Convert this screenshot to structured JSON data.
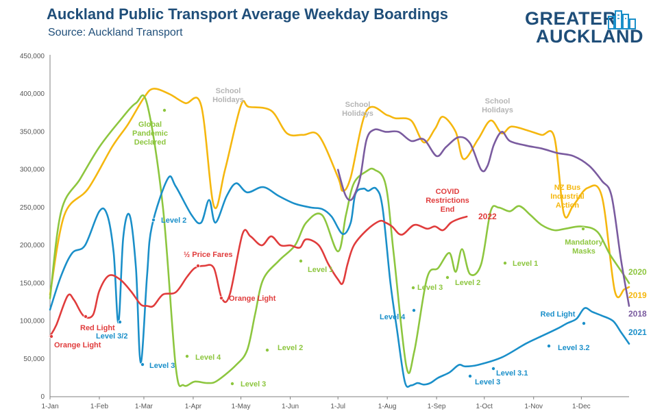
{
  "title": "Auckland Public Transport Average Weekday Boardings",
  "subtitle": "Source: Auckland Transport",
  "logo": {
    "line1": "GREATER",
    "line2": "AUCKLAND",
    "icon": "city-skyline-icon"
  },
  "chart_data": {
    "type": "line",
    "title": "Auckland Public Transport Average Weekday Boardings",
    "xlabel": "",
    "ylabel": "",
    "ylim": [
      0,
      450000
    ],
    "yticks": [
      0,
      50000,
      100000,
      150000,
      200000,
      250000,
      300000,
      350000,
      400000,
      450000
    ],
    "ytick_labels": [
      "0",
      "50,000",
      "100,000",
      "150,000",
      "200,000",
      "250,000",
      "300,000",
      "350,000",
      "400,000",
      "450,000"
    ],
    "xticks": [
      1,
      32,
      60,
      91,
      121,
      152,
      182,
      213,
      244,
      274,
      305,
      335
    ],
    "xtick_labels": [
      "1-Jan",
      "1-Feb",
      "1-Mar",
      "1-Apr",
      "1-May",
      "1-Jun",
      "1-Jul",
      "1-Aug",
      "1-Sep",
      "1-Oct",
      "1-Nov",
      "1-Dec"
    ],
    "xlim": [
      1,
      365
    ],
    "grid": false,
    "legend": "labels at line ends",
    "series": [
      {
        "name": "2019",
        "color": "#f5b70f",
        "x": [
          1,
          10,
          25,
          40,
          50,
          60,
          66,
          76,
          86,
          96,
          104,
          111,
          121,
          126,
          140,
          150,
          160,
          170,
          182,
          185,
          190,
          200,
          213,
          218,
          228,
          236,
          243,
          248,
          256,
          261,
          270,
          278,
          285,
          291,
          301,
          310,
          318,
          324,
          330,
          339,
          348,
          356,
          362,
          365
        ],
        "values": [
          135000,
          240000,
          275000,
          330000,
          360000,
          395000,
          407000,
          400000,
          388000,
          385000,
          252000,
          300000,
          385000,
          383000,
          378000,
          348000,
          346000,
          345000,
          290000,
          272000,
          290000,
          378000,
          372000,
          368000,
          365000,
          336000,
          354000,
          370000,
          350000,
          314000,
          340000,
          365000,
          348000,
          357000,
          352000,
          346000,
          343000,
          242000,
          253000,
          276000,
          264000,
          140000,
          142000,
          145000
        ]
      },
      {
        "name": "2020",
        "color": "#8dc63f",
        "x": [
          1,
          8,
          20,
          32,
          45,
          55,
          62,
          72,
          80,
          85,
          92,
          100,
          106,
          118,
          125,
          130,
          135,
          145,
          155,
          162,
          172,
          182,
          187,
          192,
          200,
          205,
          212,
          217,
          225,
          230,
          238,
          245,
          252,
          256,
          260,
          265,
          272,
          278,
          283,
          290,
          296,
          303,
          310,
          318,
          325,
          335,
          345,
          353,
          362,
          365
        ],
        "values": [
          130000,
          245000,
          288000,
          330000,
          365000,
          388000,
          387000,
          250000,
          40000,
          15000,
          20000,
          18000,
          21000,
          42000,
          62000,
          110000,
          155000,
          180000,
          200000,
          230000,
          240000,
          192000,
          240000,
          282000,
          298000,
          300000,
          280000,
          190000,
          40000,
          60000,
          157000,
          170000,
          190000,
          165000,
          195000,
          162000,
          175000,
          245000,
          250000,
          245000,
          252000,
          240000,
          227000,
          220000,
          222000,
          225000,
          218000,
          188000,
          160000,
          150000
        ]
      },
      {
        "name": "2021",
        "color": "#1a8fc9",
        "x": [
          1,
          8,
          15,
          23,
          32,
          37,
          41,
          44,
          47,
          51,
          55,
          58,
          62,
          65,
          75,
          80,
          90,
          96,
          101,
          105,
          112,
          118,
          125,
          135,
          145,
          155,
          165,
          172,
          178,
          185,
          190,
          193,
          198,
          201,
          206,
          210,
          215,
          219,
          224,
          228,
          232,
          236,
          240,
          245,
          252,
          258,
          262,
          270,
          285,
          300,
          310,
          320,
          326,
          332,
          337,
          342,
          348,
          355,
          360,
          365
        ],
        "values": [
          115000,
          160000,
          190000,
          200000,
          245000,
          240000,
          190000,
          98000,
          210000,
          240000,
          170000,
          45000,
          160000,
          225000,
          288000,
          278000,
          240000,
          230000,
          260000,
          230000,
          265000,
          282000,
          270000,
          277000,
          265000,
          255000,
          250000,
          248000,
          238000,
          215000,
          230000,
          268000,
          275000,
          272000,
          275000,
          250000,
          150000,
          90000,
          20000,
          15000,
          18000,
          16000,
          18000,
          25000,
          32000,
          42000,
          40000,
          42000,
          52000,
          70000,
          80000,
          90000,
          97000,
          103000,
          117000,
          112000,
          107000,
          100000,
          85000,
          70000
        ]
      },
      {
        "name": "2018",
        "color": "#7a5b9f",
        "x": [
          182,
          186,
          189,
          192,
          196,
          200,
          205,
          212,
          220,
          228,
          236,
          244,
          250,
          258,
          265,
          272,
          276,
          280,
          285,
          290,
          300,
          310,
          320,
          330,
          340,
          348,
          354,
          360,
          365
        ],
        "values": [
          300000,
          270000,
          260000,
          265000,
          290000,
          340000,
          353000,
          350000,
          350000,
          338000,
          340000,
          318000,
          330000,
          343000,
          335000,
          300000,
          305000,
          333000,
          350000,
          338000,
          332000,
          328000,
          322000,
          318000,
          305000,
          285000,
          265000,
          180000,
          120000
        ]
      },
      {
        "name": "2022",
        "color": "#e03c3c",
        "x": [
          1,
          5,
          12,
          16,
          22,
          28,
          32,
          38,
          45,
          52,
          58,
          62,
          66,
          72,
          80,
          87,
          92,
          98,
          104,
          109,
          114,
          122,
          127,
          134,
          140,
          146,
          152,
          158,
          162,
          170,
          176,
          182,
          185,
          188,
          192,
          200,
          208,
          212,
          216,
          222,
          230,
          238,
          243,
          248,
          253,
          258,
          263
        ],
        "values": [
          80000,
          95000,
          133000,
          128000,
          107000,
          108000,
          140000,
          160000,
          155000,
          139000,
          122000,
          120000,
          120000,
          135000,
          138000,
          158000,
          170000,
          173000,
          170000,
          130000,
          135000,
          215000,
          212000,
          200000,
          212000,
          200000,
          200000,
          197000,
          208000,
          200000,
          175000,
          155000,
          150000,
          175000,
          200000,
          220000,
          232000,
          230000,
          225000,
          214000,
          227000,
          222000,
          225000,
          220000,
          230000,
          235000,
          238000
        ]
      }
    ],
    "series_labels": [
      {
        "text": "2020",
        "color": "#8dc63f"
      },
      {
        "text": "2019",
        "color": "#f5b70f"
      },
      {
        "text": "2018",
        "color": "#7a5b9f"
      },
      {
        "text": "2021",
        "color": "#1a8fc9"
      },
      {
        "text": "2022",
        "color": "#e03c3c"
      }
    ],
    "annotations": [
      {
        "lines": [
          "School",
          "Holidays"
        ],
        "color": "#b5b5b5",
        "marker": false
      },
      {
        "lines": [
          "School",
          "Holidays"
        ],
        "color": "#b5b5b5",
        "marker": false
      },
      {
        "lines": [
          "School",
          "Holidays"
        ],
        "color": "#b5b5b5",
        "marker": false
      },
      {
        "lines": [
          "Global",
          "Pandemic",
          "Declared"
        ],
        "color": "#8dc63f",
        "marker": true
      },
      {
        "lines": [
          "Level 4"
        ],
        "color": "#8dc63f",
        "marker": true
      },
      {
        "lines": [
          "Level 3"
        ],
        "color": "#8dc63f",
        "marker": true
      },
      {
        "lines": [
          "Level 2"
        ],
        "color": "#8dc63f",
        "marker": true
      },
      {
        "lines": [
          "Level 1"
        ],
        "color": "#8dc63f",
        "marker": true
      },
      {
        "lines": [
          "Level 3"
        ],
        "color": "#8dc63f",
        "marker": true
      },
      {
        "lines": [
          "Level 2"
        ],
        "color": "#8dc63f",
        "marker": true
      },
      {
        "lines": [
          "Level 1"
        ],
        "color": "#8dc63f",
        "marker": true
      },
      {
        "lines": [
          "Mandatory",
          "Masks"
        ],
        "color": "#8dc63f",
        "marker": true
      },
      {
        "lines": [
          "NZ Bus",
          "Industrial",
          "Action"
        ],
        "color": "#f5b70f",
        "marker": false
      },
      {
        "lines": [
          "Level 2"
        ],
        "color": "#1a8fc9",
        "marker": true
      },
      {
        "lines": [
          "Level 3/2"
        ],
        "color": "#1a8fc9",
        "marker": true
      },
      {
        "lines": [
          "Level 3"
        ],
        "color": "#1a8fc9",
        "marker": true
      },
      {
        "lines": [
          "Level 4"
        ],
        "color": "#1a8fc9",
        "marker": true
      },
      {
        "lines": [
          "Level 3"
        ],
        "color": "#1a8fc9",
        "marker": true
      },
      {
        "lines": [
          "Level 3.1"
        ],
        "color": "#1a8fc9",
        "marker": true
      },
      {
        "lines": [
          "Level 3.2"
        ],
        "color": "#1a8fc9",
        "marker": true
      },
      {
        "lines": [
          "Red Light"
        ],
        "color": "#1a8fc9",
        "marker": true
      },
      {
        "lines": [
          "Orange Light"
        ],
        "color": "#e03c3c",
        "marker": true
      },
      {
        "lines": [
          "Red Light"
        ],
        "color": "#e03c3c",
        "marker": true
      },
      {
        "lines": [
          "½ Price Fares"
        ],
        "color": "#e03c3c",
        "marker": true
      },
      {
        "lines": [
          "Orange Light"
        ],
        "color": "#e03c3c",
        "marker": true
      },
      {
        "lines": [
          "COVID",
          "Restrictions",
          "End"
        ],
        "color": "#e03c3c",
        "marker": false
      }
    ]
  }
}
